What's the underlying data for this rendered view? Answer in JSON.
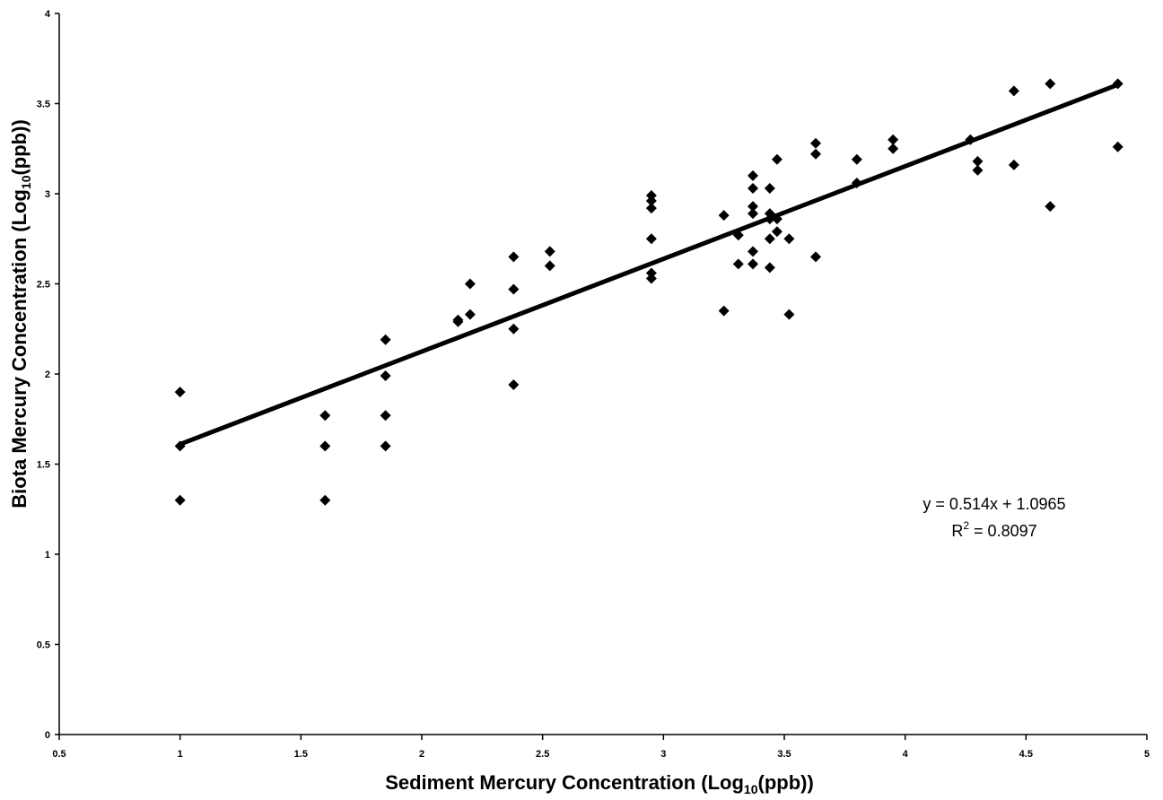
{
  "chart_data": {
    "type": "scatter",
    "title": "",
    "xlabel_main": "Sediment Mercury Concentration (Log",
    "xlabel_sub": "10",
    "xlabel_end": "(ppb))",
    "ylabel_main": "Biota Mercury Concentration (Log",
    "ylabel_sub": "10",
    "ylabel_end": "(ppb))",
    "xlim": [
      0.5,
      5
    ],
    "ylim": [
      0,
      4
    ],
    "x_ticks": [
      0.5,
      1,
      1.5,
      2,
      2.5,
      3,
      3.5,
      4,
      4.5,
      5
    ],
    "x_tick_labels": [
      "0.5",
      "1",
      "1.5",
      "2",
      "2.5",
      "3",
      "3.5",
      "4",
      "4.5",
      "5"
    ],
    "y_ticks": [
      0,
      0.5,
      1,
      1.5,
      2,
      2.5,
      3,
      3.5,
      4
    ],
    "y_tick_labels": [
      "0",
      "0.5",
      "1",
      "1.5",
      "2",
      "2.5",
      "3",
      "3.5",
      "4"
    ],
    "grid": false,
    "legend": "none",
    "marker_color": "#000000",
    "line_color": "#000000",
    "points": [
      [
        1.0,
        1.9
      ],
      [
        1.0,
        1.6
      ],
      [
        1.0,
        1.3
      ],
      [
        1.6,
        1.77
      ],
      [
        1.6,
        1.6
      ],
      [
        1.6,
        1.3
      ],
      [
        1.85,
        2.19
      ],
      [
        1.85,
        1.99
      ],
      [
        1.85,
        1.77
      ],
      [
        1.85,
        1.6
      ],
      [
        2.15,
        2.3
      ],
      [
        2.15,
        2.29
      ],
      [
        2.2,
        2.5
      ],
      [
        2.2,
        2.33
      ],
      [
        2.38,
        2.65
      ],
      [
        2.38,
        2.47
      ],
      [
        2.38,
        2.25
      ],
      [
        2.38,
        1.94
      ],
      [
        2.53,
        2.68
      ],
      [
        2.53,
        2.6
      ],
      [
        2.95,
        2.99
      ],
      [
        2.95,
        2.96
      ],
      [
        2.95,
        2.92
      ],
      [
        2.95,
        2.75
      ],
      [
        2.95,
        2.56
      ],
      [
        2.95,
        2.53
      ],
      [
        3.25,
        2.88
      ],
      [
        3.25,
        2.35
      ],
      [
        3.31,
        2.77
      ],
      [
        3.31,
        2.61
      ],
      [
        3.37,
        3.1
      ],
      [
        3.37,
        3.03
      ],
      [
        3.37,
        2.93
      ],
      [
        3.37,
        2.89
      ],
      [
        3.37,
        2.68
      ],
      [
        3.37,
        2.61
      ],
      [
        3.44,
        3.03
      ],
      [
        3.44,
        2.89
      ],
      [
        3.44,
        2.86
      ],
      [
        3.44,
        2.75
      ],
      [
        3.44,
        2.59
      ],
      [
        3.47,
        3.19
      ],
      [
        3.47,
        2.86
      ],
      [
        3.47,
        2.79
      ],
      [
        3.52,
        2.75
      ],
      [
        3.52,
        2.33
      ],
      [
        3.63,
        3.28
      ],
      [
        3.63,
        3.22
      ],
      [
        3.63,
        2.65
      ],
      [
        3.8,
        3.19
      ],
      [
        3.8,
        3.06
      ],
      [
        3.95,
        3.3
      ],
      [
        3.95,
        3.25
      ],
      [
        4.27,
        3.3
      ],
      [
        4.3,
        3.18
      ],
      [
        4.3,
        3.13
      ],
      [
        4.45,
        3.57
      ],
      [
        4.45,
        3.16
      ],
      [
        4.6,
        3.61
      ],
      [
        4.6,
        2.93
      ],
      [
        4.88,
        3.61
      ],
      [
        4.88,
        3.26
      ]
    ],
    "trendline": {
      "slope": 0.514,
      "intercept": 1.0965,
      "x_range": [
        1.0,
        4.88
      ]
    },
    "annotation_equation": "y = 0.514x + 1.0965",
    "annotation_r2_prefix": "R",
    "annotation_r2_sup": "2",
    "annotation_r2_suffix": " = 0.8097"
  }
}
